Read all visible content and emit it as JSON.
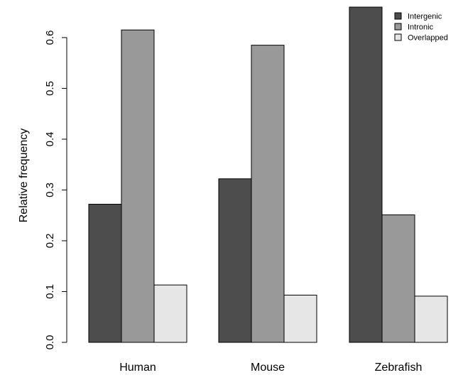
{
  "chart_data": {
    "type": "bar",
    "title": "",
    "xlabel": "",
    "ylabel": "Relative frequency",
    "ylim": [
      0,
      0.66
    ],
    "yticks": [
      "0.0",
      "0.1",
      "0.2",
      "0.3",
      "0.4",
      "0.5",
      "0.6"
    ],
    "categories": [
      "Human",
      "Mouse",
      "Zebrafish"
    ],
    "series": [
      {
        "name": "Intergenic",
        "color": "#4d4d4d",
        "values": [
          0.272,
          0.322,
          0.66
        ]
      },
      {
        "name": "Intronic",
        "color": "#999999",
        "values": [
          0.615,
          0.585,
          0.251
        ]
      },
      {
        "name": "Overlapped",
        "color": "#e6e6e6",
        "values": [
          0.113,
          0.093,
          0.091
        ]
      }
    ],
    "grid": false,
    "legend": "top-right",
    "bar_border_color": "#000000"
  }
}
